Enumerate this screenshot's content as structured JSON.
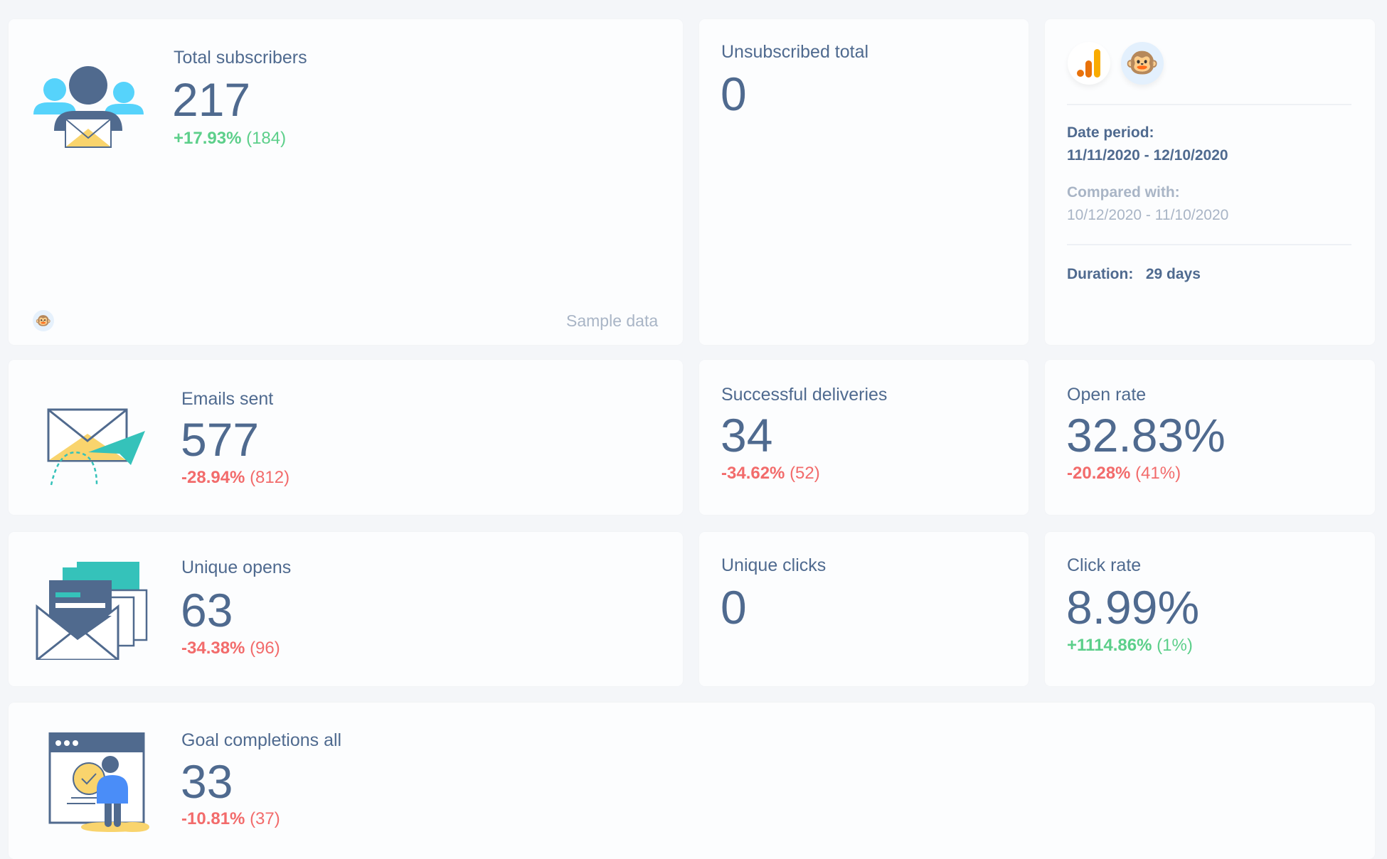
{
  "colors": {
    "text": "#4f6a8f",
    "positive": "#5ccf8a",
    "negative": "#f26b6b",
    "muted": "#a9b5c6"
  },
  "subscribers": {
    "label": "Total subscribers",
    "value": "217",
    "change": "+17.93%",
    "previous": "(184)",
    "footer": "Sample data",
    "icon": "subscribers-envelope-icon"
  },
  "unsubscribed": {
    "label": "Unsubscribed total",
    "value": "0"
  },
  "info": {
    "sources": [
      "google-analytics-icon",
      "mailchimp-icon"
    ],
    "date_period_label": "Date period:",
    "date_period": "11/11/2020 - 12/10/2020",
    "compared_label": "Compared with:",
    "compared": "10/12/2020 - 11/10/2020",
    "duration_label": "Duration:",
    "duration": "29 days"
  },
  "emails_sent": {
    "label": "Emails sent",
    "value": "577",
    "change": "-28.94%",
    "previous": "(812)"
  },
  "deliveries": {
    "label": "Successful deliveries",
    "value": "34",
    "change": "-34.62%",
    "previous": "(52)"
  },
  "open_rate": {
    "label": "Open rate",
    "value": "32.83%",
    "change": "-20.28%",
    "previous": "(41%)"
  },
  "unique_opens": {
    "label": "Unique opens",
    "value": "63",
    "change": "-34.38%",
    "previous": "(96)"
  },
  "unique_clicks": {
    "label": "Unique clicks",
    "value": "0"
  },
  "click_rate": {
    "label": "Click rate",
    "value": "8.99%",
    "change": "+1114.86%",
    "previous": "(1%)"
  },
  "goals": {
    "label": "Goal completions all",
    "value": "33",
    "change": "-10.81%",
    "previous": "(37)"
  }
}
